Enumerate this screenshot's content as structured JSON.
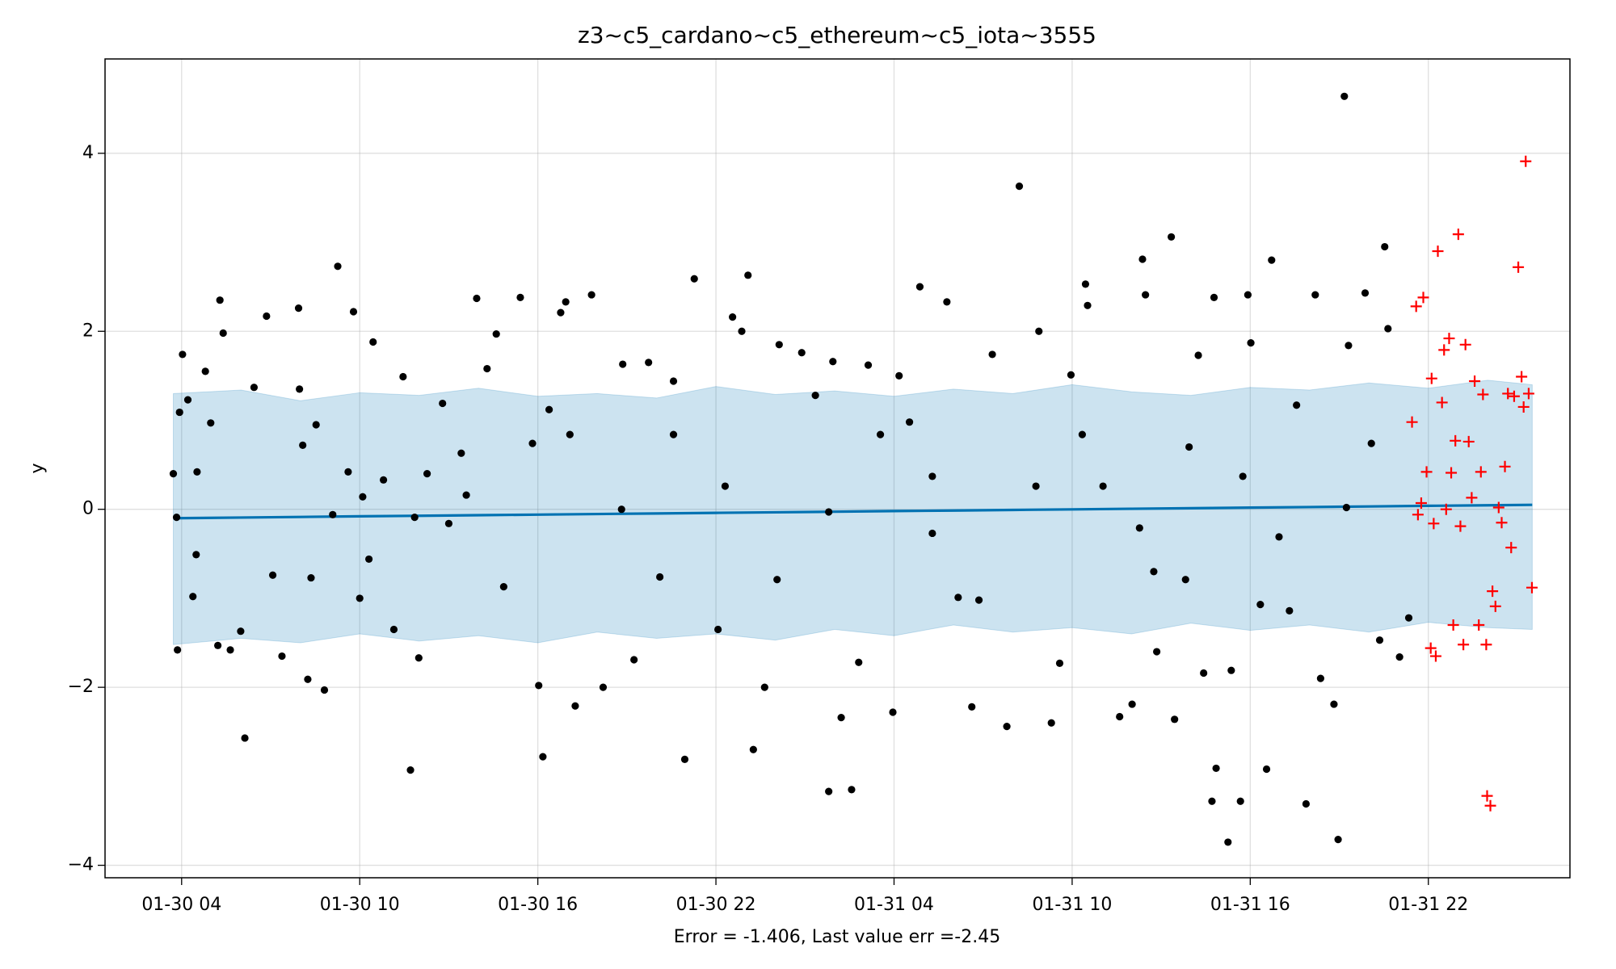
{
  "chart_data": {
    "type": "forecast",
    "title": "z3~c5_cardano~c5_ethereum~c5_iota~3555",
    "xlabel": "Error = -1.406, Last value err =-2.45",
    "ylabel": "y",
    "xlim": [
      1.42,
      50.77
    ],
    "ylim": [
      -4.14,
      5.06
    ],
    "xticks": [
      {
        "value": 4,
        "label": "01-30 04"
      },
      {
        "value": 10,
        "label": "01-30 10"
      },
      {
        "value": 16,
        "label": "01-30 16"
      },
      {
        "value": 22,
        "label": "01-30 22"
      },
      {
        "value": 28,
        "label": "01-31 04"
      },
      {
        "value": 34,
        "label": "01-31 10"
      },
      {
        "value": 40,
        "label": "01-31 16"
      },
      {
        "value": 46,
        "label": "01-31 22"
      }
    ],
    "yticks": [
      {
        "value": -4,
        "label": "−4"
      },
      {
        "value": -2,
        "label": "−2"
      },
      0,
      2,
      4
    ],
    "grid": true,
    "series": [
      {
        "kind": "line",
        "color": "#0072B2",
        "x": [
          3.72,
          6,
          8,
          10,
          12,
          14,
          16,
          18,
          20,
          22,
          24,
          26,
          28,
          30,
          32,
          34,
          36,
          38,
          40,
          42,
          44,
          46,
          48,
          49.5
        ],
        "values": [
          -0.1,
          -0.093,
          -0.086,
          -0.079,
          -0.073,
          -0.066,
          -0.06,
          -0.053,
          -0.047,
          -0.04,
          -0.034,
          -0.027,
          -0.02,
          -0.014,
          -0.007,
          -0.001,
          0.006,
          0.012,
          0.019,
          0.025,
          0.032,
          0.039,
          0.045,
          0.05
        ],
        "upper": [
          1.3,
          1.34,
          1.22,
          1.31,
          1.28,
          1.36,
          1.27,
          1.3,
          1.25,
          1.38,
          1.29,
          1.33,
          1.27,
          1.35,
          1.3,
          1.4,
          1.32,
          1.28,
          1.37,
          1.34,
          1.42,
          1.36,
          1.45,
          1.4
        ],
        "lower": [
          -1.52,
          -1.45,
          -1.5,
          -1.4,
          -1.48,
          -1.42,
          -1.5,
          -1.38,
          -1.45,
          -1.4,
          -1.47,
          -1.35,
          -1.42,
          -1.3,
          -1.38,
          -1.33,
          -1.4,
          -1.28,
          -1.36,
          -1.3,
          -1.38,
          -1.27,
          -1.33,
          -1.35
        ]
      },
      {
        "kind": "dot",
        "color": "#000000",
        "x": [
          3.72,
          3.83,
          3.93,
          4.03,
          3.86,
          4.21,
          4.38,
          4.52,
          4.49,
          4.8,
          4.98,
          5.29,
          5.4,
          5.22,
          5.64,
          6.13,
          5.99,
          6.44,
          6.86,
          7.07,
          7.38,
          7.94,
          7.97,
          8.08,
          8.25,
          8.53,
          8.81,
          9.09,
          9.26,
          9.61,
          9.79,
          10.0,
          10.31,
          10.45,
          10.8,
          11.15,
          11.46,
          11.71,
          11.99,
          12.27,
          12.79,
          13.0,
          13.42,
          13.94,
          14.29,
          14.6,
          14.85,
          15.41,
          15.82,
          16.03,
          16.17,
          16.38,
          16.77,
          16.94,
          17.26,
          17.81,
          18.2,
          18.86,
          19.24,
          19.73,
          20.11,
          20.57,
          20.95,
          21.27,
          22.07,
          22.56,
          22.87,
          23.08,
          23.26,
          23.64,
          24.13,
          24.89,
          25.35,
          25.8,
          25.94,
          26.22,
          26.57,
          26.81,
          27.13,
          27.96,
          28.17,
          28.52,
          28.87,
          29.29,
          29.78,
          30.16,
          30.62,
          31.31,
          31.8,
          32.22,
          32.88,
          33.3,
          33.58,
          33.96,
          34.45,
          34.52,
          35.04,
          35.6,
          36.02,
          36.37,
          36.47,
          36.75,
          36.85,
          37.34,
          37.45,
          37.94,
          38.25,
          38.43,
          38.71,
          38.85,
          38.78,
          39.25,
          39.36,
          39.67,
          39.92,
          40.02,
          40.34,
          40.55,
          40.72,
          40.97,
          41.56,
          41.88,
          42.19,
          42.37,
          42.82,
          42.96,
          43.17,
          43.31,
          43.87,
          44.08,
          44.36,
          44.53,
          44.64,
          45.03,
          45.34,
          8.36,
          11.85,
          13.59,
          18.82,
          22.31,
          25.8,
          29.29,
          32.78,
          36.27,
          39.75,
          43.24,
          10.1,
          17.08,
          20.57,
          24.06,
          27.54,
          30.86,
          34.34,
          37.82,
          41.32
        ],
        "values": [
          0.4,
          -0.09,
          1.09,
          1.74,
          -1.58,
          1.23,
          -0.98,
          0.42,
          -0.51,
          1.55,
          0.97,
          2.35,
          1.98,
          -1.53,
          -1.58,
          -2.57,
          -1.37,
          1.37,
          2.17,
          -0.74,
          -1.65,
          2.26,
          1.35,
          0.72,
          -1.91,
          0.95,
          -2.03,
          -0.06,
          2.73,
          0.42,
          2.22,
          -1.0,
          -0.56,
          1.88,
          0.33,
          -1.35,
          1.49,
          -2.93,
          -1.67,
          0.4,
          1.19,
          -0.16,
          0.63,
          2.37,
          1.58,
          1.97,
          -0.87,
          2.38,
          0.74,
          -1.98,
          -2.78,
          1.12,
          2.21,
          2.33,
          -2.21,
          2.41,
          -2.0,
          1.63,
          -1.69,
          1.65,
          -0.76,
          1.44,
          -2.81,
          2.59,
          -1.35,
          2.16,
          2.0,
          2.63,
          -2.7,
          -2.0,
          1.85,
          1.76,
          1.28,
          -3.17,
          1.66,
          -2.34,
          -3.15,
          -1.72,
          1.62,
          -2.28,
          1.5,
          0.98,
          2.5,
          -0.27,
          2.33,
          -0.99,
          -2.22,
          1.74,
          -2.44,
          3.63,
          2.0,
          -2.4,
          -1.73,
          1.51,
          2.53,
          2.29,
          0.26,
          -2.33,
          -2.19,
          2.81,
          2.41,
          -0.7,
          -1.6,
          3.06,
          -2.36,
          0.7,
          1.73,
          -1.84,
          -3.28,
          -2.91,
          2.38,
          -3.74,
          -1.81,
          -3.28,
          2.41,
          1.87,
          -1.07,
          -2.92,
          2.8,
          -0.31,
          1.17,
          -3.31,
          2.41,
          -1.9,
          -2.19,
          -3.71,
          4.64,
          1.84,
          2.43,
          0.74,
          -1.47,
          2.95,
          2.03,
          -1.66,
          -1.22,
          -0.77,
          -0.09,
          0.16,
          0.0,
          0.26,
          -0.03,
          0.37,
          0.26,
          -0.21,
          0.37,
          0.02,
          0.14,
          0.84,
          0.84,
          -0.79,
          0.84,
          -1.02,
          0.84,
          -0.79,
          -1.14
        ]
      },
      {
        "kind": "plus",
        "color": "#ff0000",
        "x": [
          45.45,
          45.59,
          45.65,
          45.76,
          45.83,
          45.94,
          46.08,
          46.11,
          46.18,
          46.25,
          46.32,
          46.46,
          46.53,
          46.6,
          46.7,
          46.77,
          46.84,
          46.91,
          47.01,
          47.08,
          47.18,
          47.25,
          47.36,
          47.46,
          47.56,
          47.7,
          47.77,
          47.84,
          47.95,
          47.98,
          48.09,
          48.16,
          48.26,
          48.37,
          48.47,
          48.58,
          48.68,
          48.79,
          48.89,
          49.03,
          49.14,
          49.21,
          49.28,
          49.38,
          49.49
        ],
        "values": [
          0.98,
          2.28,
          -0.06,
          0.07,
          2.38,
          0.42,
          -1.56,
          1.47,
          -0.16,
          -1.65,
          2.9,
          1.2,
          1.79,
          0.0,
          1.92,
          0.41,
          -1.3,
          0.77,
          3.09,
          -0.19,
          -1.52,
          1.85,
          0.76,
          0.13,
          1.44,
          -1.3,
          0.42,
          1.29,
          -1.52,
          -3.22,
          -3.33,
          -0.92,
          -1.09,
          0.02,
          -0.15,
          0.48,
          1.3,
          -0.43,
          1.27,
          2.72,
          1.49,
          1.15,
          3.91,
          1.3,
          -0.88
        ]
      }
    ]
  }
}
